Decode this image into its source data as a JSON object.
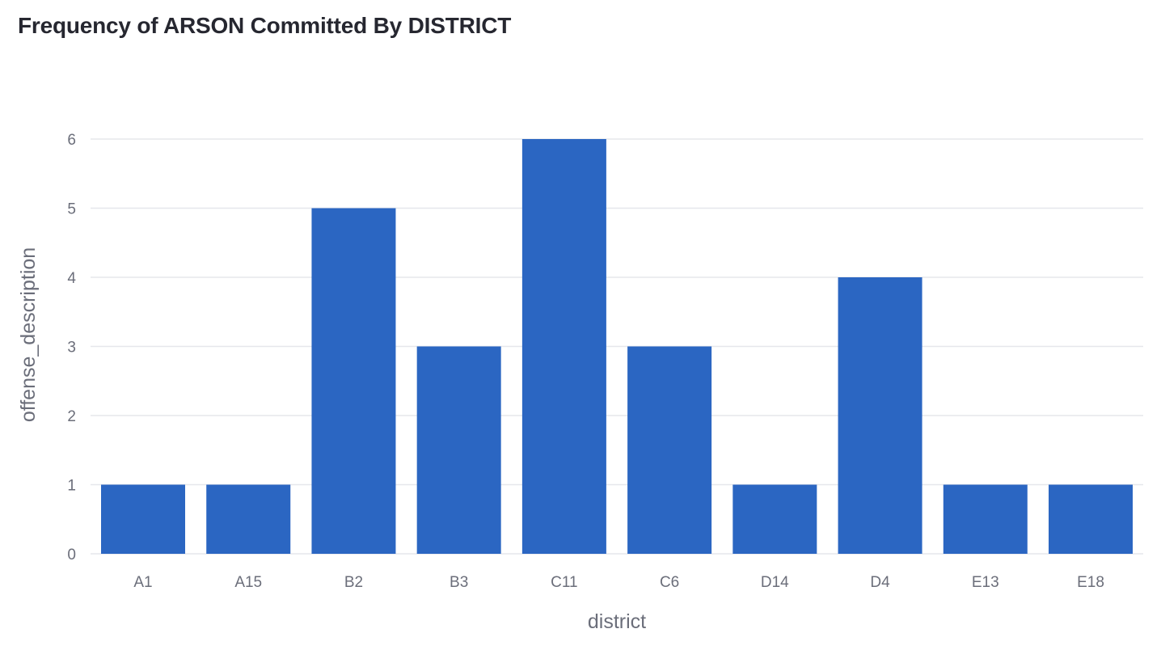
{
  "chart_data": {
    "type": "bar",
    "title": "Frequency of ARSON Committed By DISTRICT",
    "xlabel": "district",
    "ylabel": "offense_description",
    "categories": [
      "A1",
      "A15",
      "B2",
      "B3",
      "C11",
      "C6",
      "D14",
      "D4",
      "E13",
      "E18"
    ],
    "values": [
      1,
      1,
      5,
      3,
      6,
      3,
      1,
      4,
      1,
      1
    ],
    "ylim": [
      0,
      6
    ],
    "yticks": [
      0,
      1,
      2,
      3,
      4,
      5,
      6
    ],
    "grid": true,
    "legend": "none",
    "bar_color": "#2b66c2",
    "grid_color": "#e6e7ec",
    "text_color": "#6b6e7a",
    "title_color": "#262730"
  }
}
